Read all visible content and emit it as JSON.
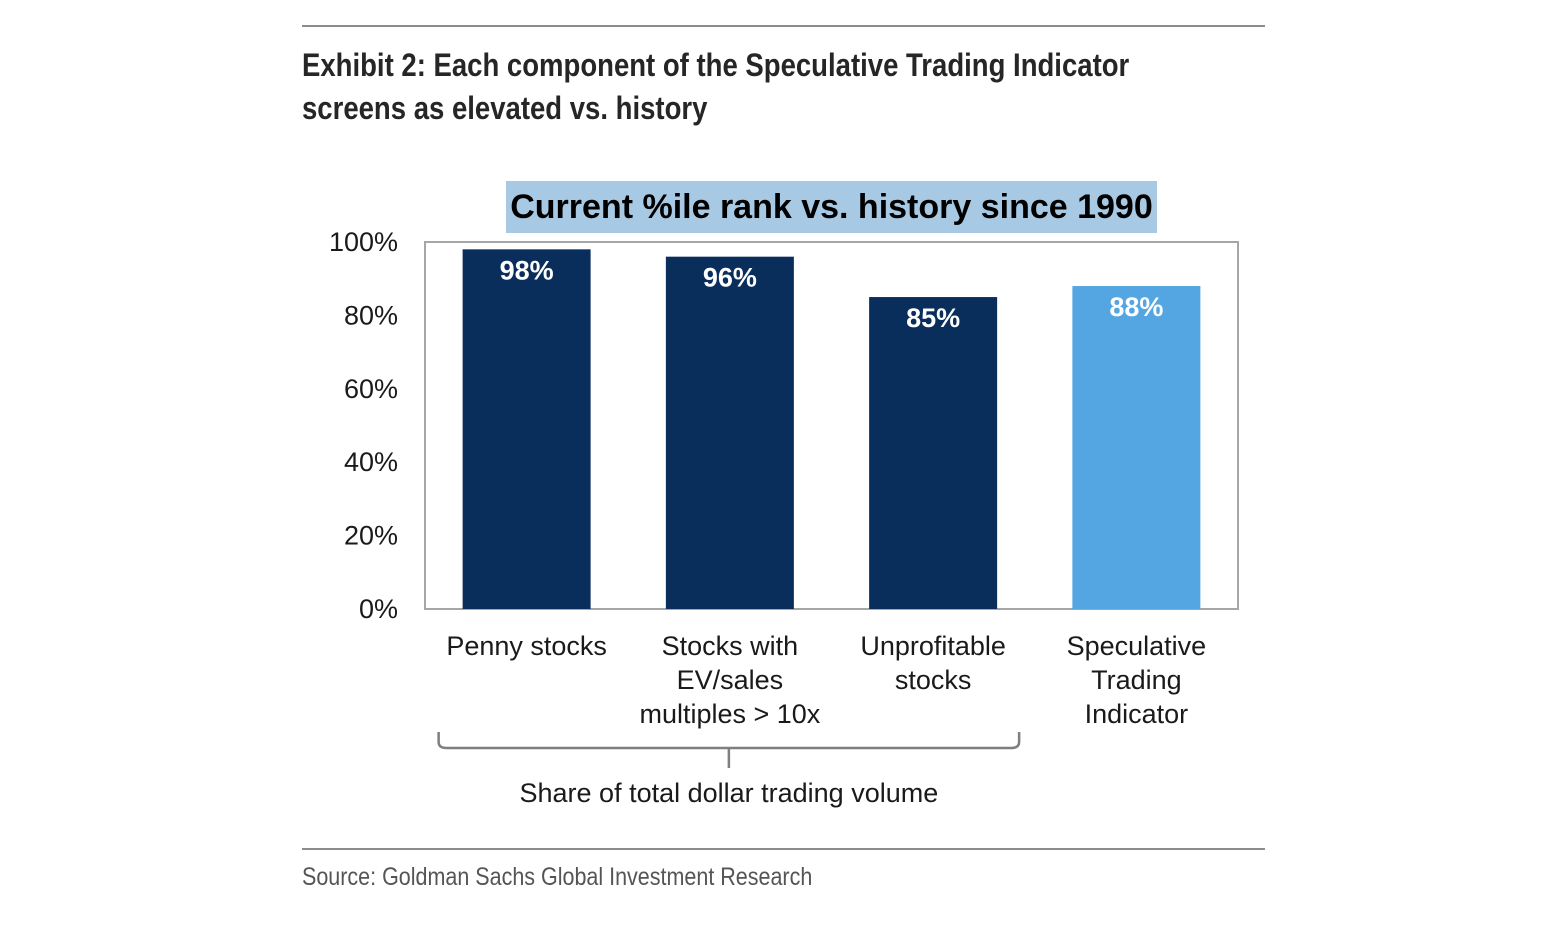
{
  "exhibit": {
    "title_line1": "Exhibit 2: Each component of the Speculative Trading Indicator",
    "title_line2": "screens as elevated vs. history"
  },
  "source": "Source: Goldman Sachs Global Investment Research",
  "chart_data": {
    "type": "bar",
    "title": "Current %ile rank vs. history since 1990",
    "xlabel": "",
    "ylabel": "",
    "ylim": [
      0,
      100
    ],
    "yticks": [
      0,
      20,
      40,
      60,
      80,
      100
    ],
    "ytick_labels": [
      "0%",
      "20%",
      "40%",
      "60%",
      "80%",
      "100%"
    ],
    "grid": false,
    "legend": "none",
    "categories": [
      [
        "Penny stocks"
      ],
      [
        "Stocks with",
        "EV/sales",
        "multiples > 10x"
      ],
      [
        "Unprofitable",
        "stocks"
      ],
      [
        "Speculative",
        "Trading",
        "Indicator"
      ]
    ],
    "values": [
      98,
      96,
      85,
      88
    ],
    "data_labels": [
      "98%",
      "96%",
      "85%",
      "88%"
    ],
    "colors": [
      "#0a2e5c",
      "#0a2e5c",
      "#0a2e5c",
      "#54a6e2"
    ],
    "bracket_label": "Share of total dollar trading volume",
    "bracket_categories": [
      0,
      1,
      2
    ]
  }
}
